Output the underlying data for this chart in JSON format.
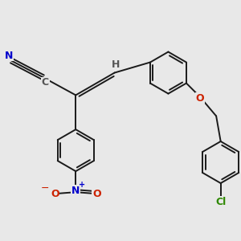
{
  "background_color": "#e8e8e8",
  "bond_color": "#1a1a1a",
  "bond_width": 1.4,
  "figsize": [
    3.0,
    3.0
  ],
  "dpi": 100,
  "xlim": [
    -2.5,
    5.5
  ],
  "ylim": [
    -4.5,
    2.8
  ],
  "N_color": "#0000cc",
  "O_color": "#cc2200",
  "Cl_color": "#2d8800",
  "C_color": "#555555",
  "H_color": "#555555"
}
